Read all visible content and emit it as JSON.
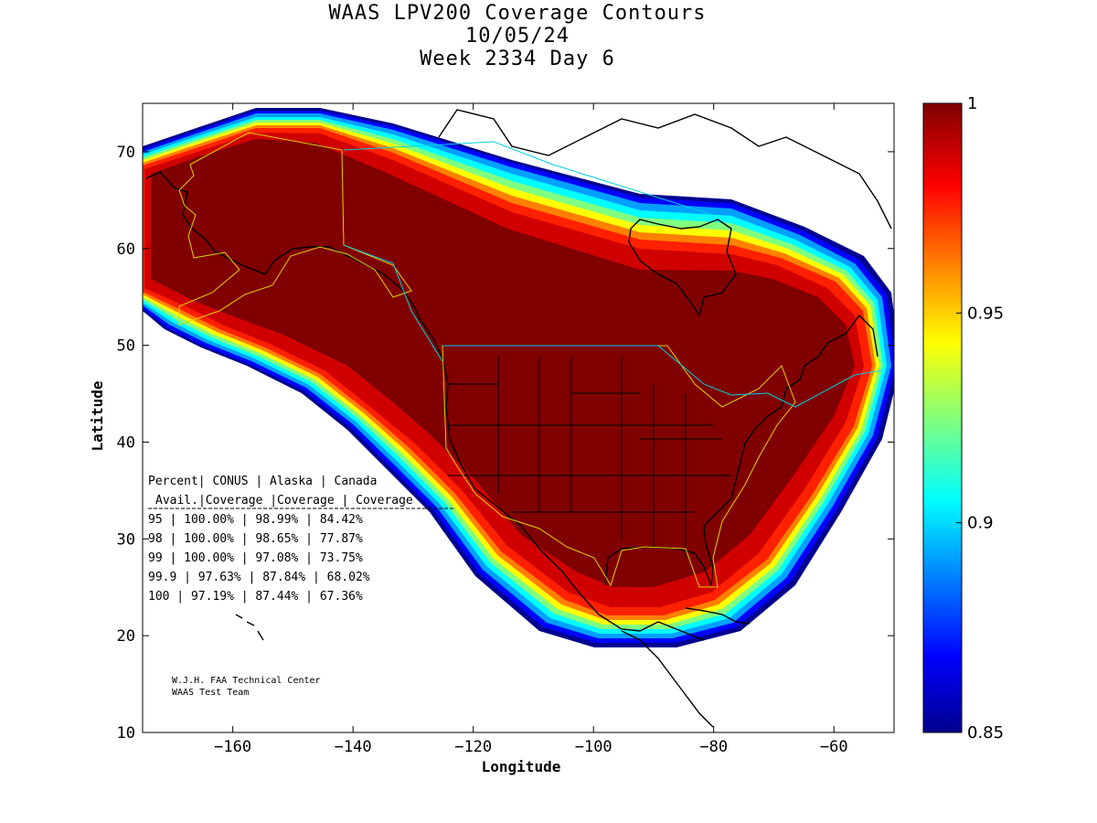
{
  "title": {
    "line1": "WAAS LPV200 Coverage Contours",
    "line2": "10/05/24",
    "line3": "Week 2334 Day 6"
  },
  "axes": {
    "xlabel": "Longitude",
    "ylabel": "Latitude",
    "xticks": [
      -160,
      -140,
      -120,
      -100,
      -80,
      -60
    ],
    "yticks": [
      10,
      20,
      30,
      40,
      50,
      60,
      70
    ],
    "xlim": [
      -175,
      -50
    ],
    "ylim": [
      10,
      75
    ]
  },
  "colorbar": {
    "ticks": [
      "1",
      "0.95",
      "0.9",
      "0.85"
    ],
    "range": [
      0.85,
      1
    ],
    "colormap": "jet",
    "colors": [
      "#00008f",
      "#0000ff",
      "#0080ff",
      "#00ffff",
      "#80ff80",
      "#ffff00",
      "#ff8000",
      "#ff0000",
      "#800000"
    ]
  },
  "table": {
    "header1": [
      "Percent",
      "CONUS",
      "Alaska",
      "Canada"
    ],
    "header2": [
      "Avail.",
      "Coverage",
      "Coverage",
      "Coverage"
    ],
    "rows": [
      [
        "95",
        "100.00%",
        "98.99%",
        "84.42%"
      ],
      [
        "98",
        "100.00%",
        "98.65%",
        "77.87%"
      ],
      [
        "99",
        "100.00%",
        "97.08%",
        "73.75%"
      ],
      [
        "99.9",
        "97.63%",
        "87.84%",
        "68.02%"
      ],
      [
        "100",
        "97.19%",
        "87.44%",
        "67.36%"
      ]
    ]
  },
  "credit": {
    "line1": "W.J.H. FAA Technical Center",
    "line2": "WAAS Test Team"
  }
}
